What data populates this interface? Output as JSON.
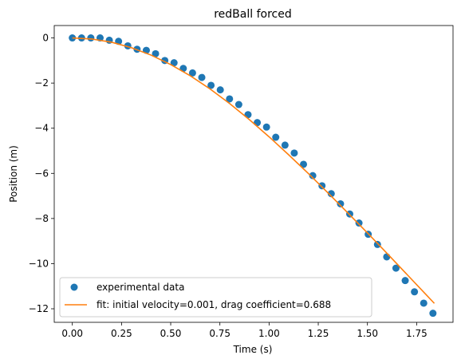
{
  "chart_data": {
    "type": "scatter",
    "title": "redBall forced",
    "xlabel": "Time (s)",
    "ylabel": "Position (m)",
    "xlim": [
      -0.092,
      1.935
    ],
    "ylim": [
      -12.6,
      0.55
    ],
    "xticks": [
      0.0,
      0.25,
      0.5,
      0.75,
      1.0,
      1.25,
      1.5,
      1.75
    ],
    "xtick_labels": [
      "0.00",
      "0.25",
      "0.50",
      "0.75",
      "1.00",
      "1.25",
      "1.50",
      "1.75"
    ],
    "yticks": [
      0,
      -2,
      -4,
      -6,
      -8,
      -10,
      -12
    ],
    "ytick_labels": [
      "0",
      "−2",
      "−4",
      "−6",
      "−8",
      "−10",
      "−12"
    ],
    "grid": false,
    "legend_position": "lower-left",
    "colors": {
      "data": "#1f77b4",
      "fit": "#ff7f0e"
    },
    "series": [
      {
        "name": "experimental data",
        "kind": "scatter",
        "x": [
          0.0,
          0.047,
          0.094,
          0.141,
          0.188,
          0.235,
          0.282,
          0.329,
          0.376,
          0.423,
          0.47,
          0.517,
          0.564,
          0.611,
          0.658,
          0.705,
          0.752,
          0.799,
          0.846,
          0.893,
          0.94,
          0.987,
          1.034,
          1.081,
          1.128,
          1.175,
          1.222,
          1.269,
          1.316,
          1.363,
          1.41,
          1.457,
          1.504,
          1.551,
          1.598,
          1.645,
          1.692,
          1.739,
          1.786,
          1.833
        ],
        "y": [
          0.0,
          0.0,
          0.0,
          0.0,
          -0.1,
          -0.15,
          -0.35,
          -0.5,
          -0.55,
          -0.7,
          -1.0,
          -1.1,
          -1.35,
          -1.55,
          -1.75,
          -2.1,
          -2.3,
          -2.7,
          -2.95,
          -3.4,
          -3.75,
          -3.95,
          -4.4,
          -4.75,
          -5.1,
          -5.6,
          -6.1,
          -6.55,
          -6.9,
          -7.35,
          -7.8,
          -8.2,
          -8.7,
          -9.15,
          -9.7,
          -10.2,
          -10.75,
          -11.25,
          -11.75,
          -12.2
        ]
      },
      {
        "name": "fit: initial velocity=0.001, drag coefficient=0.688",
        "kind": "line",
        "x": [
          0.0,
          0.1,
          0.2,
          0.3,
          0.4,
          0.5,
          0.6,
          0.7,
          0.8,
          0.9,
          1.0,
          1.1,
          1.2,
          1.3,
          1.4,
          1.5,
          1.6,
          1.7,
          1.8,
          1.84
        ],
        "y": [
          0.0,
          -0.05,
          -0.19,
          -0.43,
          -0.76,
          -1.18,
          -1.68,
          -2.26,
          -2.91,
          -3.62,
          -4.38,
          -5.18,
          -6.01,
          -6.87,
          -7.75,
          -8.64,
          -9.55,
          -10.47,
          -11.39,
          -11.76
        ]
      }
    ]
  }
}
